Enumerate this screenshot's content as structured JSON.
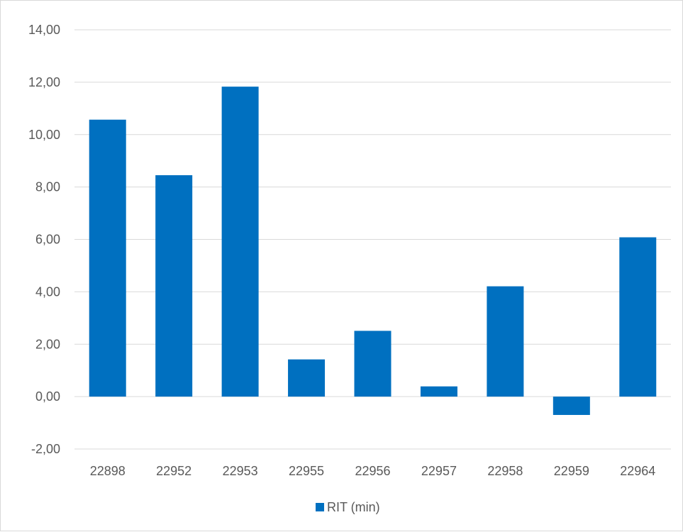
{
  "chart_data": {
    "type": "bar",
    "categories": [
      "22898",
      "22952",
      "22953",
      "22955",
      "22956",
      "22957",
      "22958",
      "22959",
      "22964"
    ],
    "series": [
      {
        "name": "RIT (min)",
        "values": [
          10.57,
          8.45,
          11.83,
          1.42,
          2.51,
          0.39,
          4.21,
          -0.7,
          6.08
        ]
      }
    ],
    "yticks": [
      "-2,00",
      "0,00",
      "2,00",
      "4,00",
      "6,00",
      "8,00",
      "10,00",
      "12,00",
      "14,00"
    ],
    "ylim": [
      -2,
      14
    ],
    "ystep": 2,
    "grid": true,
    "legend_position": "bottom",
    "bar_color": "#0070c0",
    "grid_color": "#d9d9d9",
    "text_color": "#595959"
  }
}
